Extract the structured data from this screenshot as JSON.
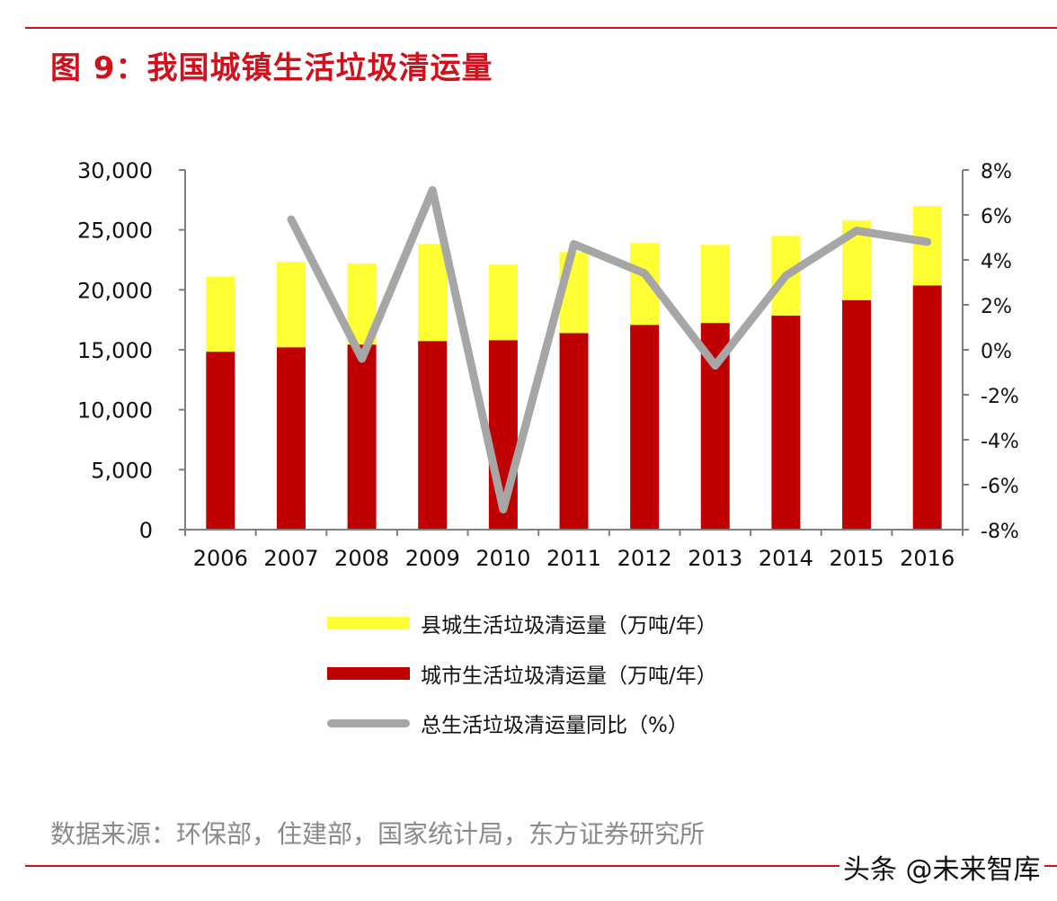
{
  "title": "图 9：我国城镇生活垃圾清运量",
  "source": "数据来源：环保部，住建部，国家统计局，东方证券研究所",
  "watermark": "头条 @未来智库",
  "colors": {
    "accent": "#d0101a",
    "county": "#ffff33",
    "city": "#c00000",
    "yoy": "#a6a6a6"
  },
  "chart_data": {
    "type": "bar",
    "stacked": true,
    "categories": [
      "2006",
      "2007",
      "2008",
      "2009",
      "2010",
      "2011",
      "2012",
      "2013",
      "2014",
      "2015",
      "2016"
    ],
    "series": [
      {
        "name": "城市生活垃圾清运量（万吨/年）",
        "type": "bar",
        "axis": "left",
        "values": [
          14840,
          15210,
          15438,
          15734,
          15805,
          16395,
          17081,
          17239,
          17860,
          19142,
          20362
        ]
      },
      {
        "name": "县城生活垃圾清运量（万吨/年）",
        "type": "bar",
        "axis": "left",
        "values": [
          6260,
          7140,
          6770,
          8100,
          6295,
          6755,
          6819,
          6511,
          6640,
          6658,
          6638
        ]
      },
      {
        "name": "总生活垃圾清运量同比（%）",
        "type": "line",
        "axis": "right",
        "values": [
          null,
          5.8,
          -0.4,
          7.1,
          -7.1,
          4.7,
          3.4,
          -0.7,
          3.3,
          5.3,
          4.8
        ]
      }
    ],
    "y_left": {
      "ylim": [
        0,
        30000
      ],
      "ticks": [
        "0",
        "5,000",
        "10,000",
        "15,000",
        "20,000",
        "25,000",
        "30,000"
      ]
    },
    "y_right": {
      "ylim": [
        -8,
        8
      ],
      "ticks": [
        "-8%",
        "-6%",
        "-4%",
        "-2%",
        "0%",
        "2%",
        "4%",
        "6%",
        "8%"
      ]
    },
    "grid": false,
    "legend": "bottom"
  }
}
